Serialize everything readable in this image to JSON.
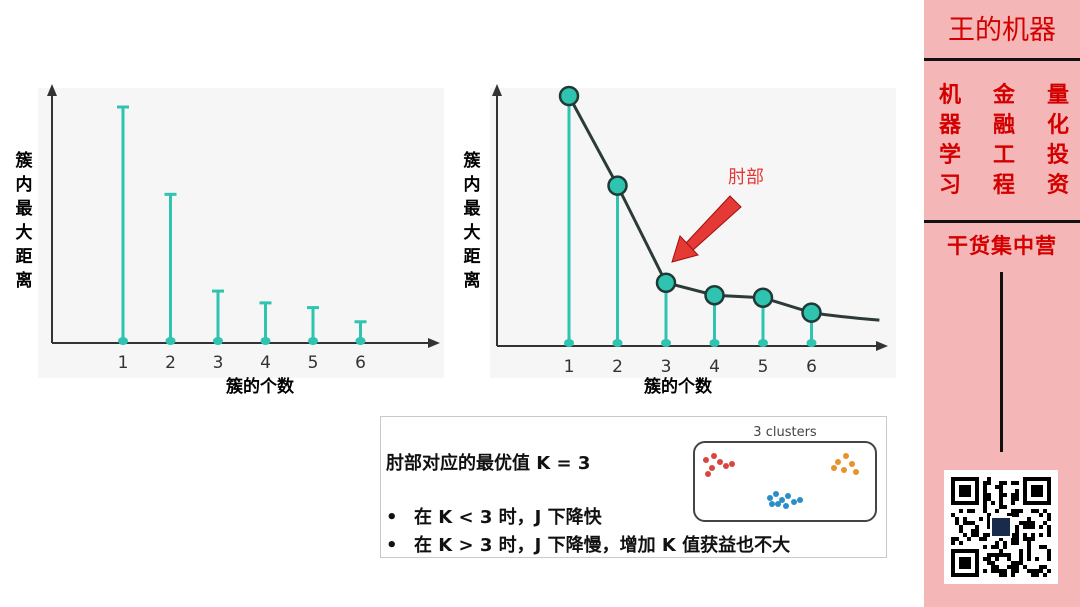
{
  "chart_data": [
    {
      "type": "bar",
      "categories": [
        "1",
        "2",
        "3",
        "4",
        "5",
        "6"
      ],
      "values": [
        100,
        63,
        22,
        17,
        15,
        9
      ],
      "ylabel": "簇内最大距离",
      "xlabel": "簇的个数",
      "grid": false
    },
    {
      "type": "line",
      "categories": [
        "1",
        "2",
        "3",
        "4",
        "5",
        "6"
      ],
      "values": [
        100,
        64,
        25,
        20,
        19,
        13
      ],
      "tail_value": 10,
      "ylabel": "簇内最大距离",
      "xlabel": "簇的个数",
      "annotation": "肘部",
      "grid": false
    }
  ],
  "info": {
    "title": "肘部对应的最优值 K = 3",
    "bullets": [
      "在 K < 3 时，J 下降快",
      "在 K > 3 时，J 下降慢，增加 K 值获益也不大"
    ],
    "bullet_marker": "•",
    "mini_title": "3 clusters",
    "cluster_colors": [
      "#d9463f",
      "#e8922c",
      "#2a8fc6"
    ]
  },
  "panel": {
    "brand": "王的机器",
    "tags": [
      [
        "机",
        "器",
        "学",
        "习"
      ],
      [
        "金",
        "融",
        "工",
        "程"
      ],
      [
        "量",
        "化",
        "投",
        "资"
      ]
    ],
    "slogan": "干货集中营"
  },
  "colors": {
    "stem": "#2ec4b0",
    "line": "#2c3a3a",
    "accent": "#d40000",
    "arrow": "#e53935",
    "panel_bg": "#f4b6b6"
  }
}
